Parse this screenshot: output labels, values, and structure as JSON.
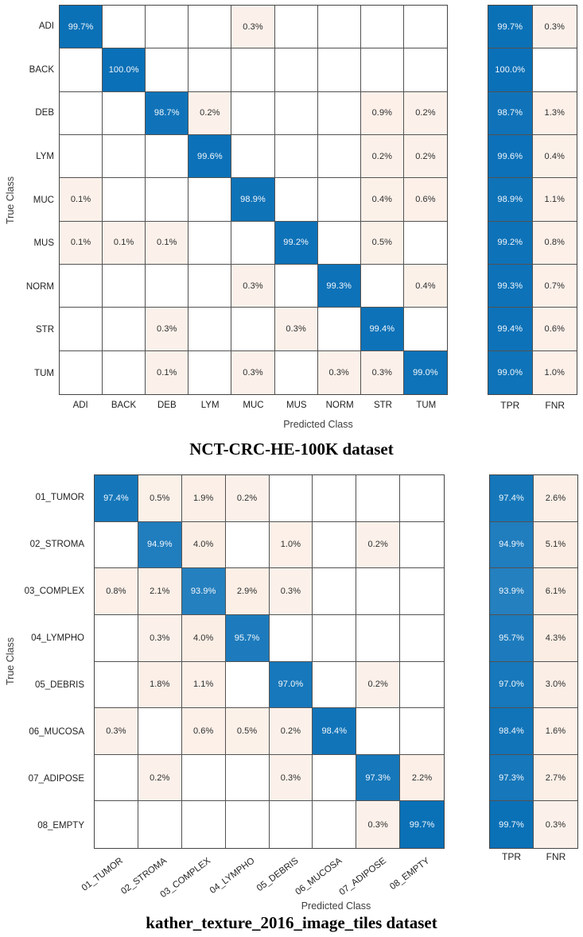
{
  "colors": {
    "diagonal_blue": "#0a70b7",
    "off_diagonal_tint": "#fcf1ea",
    "off_diagonal_deep": "#f5dcc9",
    "grid_line": "#525252",
    "cell_text_light": "#f2f7fb",
    "cell_text_dark": "#2e2e2e"
  },
  "chart_data": [
    {
      "type": "heatmap",
      "name": "confusion-matrix-nct-crc-he-100k",
      "title": "NCT-CRC-HE-100K dataset",
      "xlabel": "Predicted Class",
      "ylabel": "True Class",
      "legend_position": "none",
      "grid": true,
      "classes": [
        "ADI",
        "BACK",
        "DEB",
        "LYM",
        "MUC",
        "MUS",
        "NORM",
        "STR",
        "TUM"
      ],
      "matrix_percent": [
        [
          99.7,
          null,
          null,
          null,
          0.3,
          null,
          null,
          null,
          null
        ],
        [
          null,
          100.0,
          null,
          null,
          null,
          null,
          null,
          null,
          null
        ],
        [
          null,
          null,
          98.7,
          0.2,
          null,
          null,
          null,
          0.9,
          0.2
        ],
        [
          null,
          null,
          null,
          99.6,
          null,
          null,
          null,
          0.2,
          0.2
        ],
        [
          0.1,
          null,
          null,
          null,
          98.9,
          null,
          null,
          0.4,
          0.6
        ],
        [
          0.1,
          0.1,
          0.1,
          null,
          null,
          99.2,
          null,
          0.5,
          null
        ],
        [
          null,
          null,
          null,
          null,
          0.3,
          null,
          99.3,
          null,
          0.4
        ],
        [
          null,
          null,
          0.3,
          null,
          null,
          0.3,
          null,
          99.4,
          null
        ],
        [
          null,
          null,
          0.1,
          null,
          0.3,
          null,
          0.3,
          0.3,
          99.0
        ]
      ],
      "summary_columns": [
        "TPR",
        "FNR"
      ],
      "summary_percent": [
        [
          99.7,
          0.3
        ],
        [
          100.0,
          null
        ],
        [
          98.7,
          1.3
        ],
        [
          99.6,
          0.4
        ],
        [
          98.9,
          1.1
        ],
        [
          99.2,
          0.8
        ],
        [
          99.3,
          0.7
        ],
        [
          99.4,
          0.6
        ],
        [
          99.0,
          1.0
        ]
      ]
    },
    {
      "type": "heatmap",
      "name": "confusion-matrix-kather-texture-2016",
      "title": "kather_texture_2016_image_tiles dataset",
      "xlabel": "Predicted Class",
      "ylabel": "True Class",
      "legend_position": "none",
      "grid": true,
      "classes": [
        "01_TUMOR",
        "02_STROMA",
        "03_COMPLEX",
        "04_LYMPHO",
        "05_DEBRIS",
        "06_MUCOSA",
        "07_ADIPOSE",
        "08_EMPTY"
      ],
      "matrix_percent": [
        [
          97.4,
          0.5,
          1.9,
          0.2,
          null,
          null,
          null,
          null
        ],
        [
          null,
          94.9,
          4.0,
          null,
          1.0,
          null,
          0.2,
          null
        ],
        [
          0.8,
          2.1,
          93.9,
          2.9,
          0.3,
          null,
          null,
          null
        ],
        [
          null,
          0.3,
          4.0,
          95.7,
          null,
          null,
          null,
          null
        ],
        [
          null,
          1.8,
          1.1,
          null,
          97.0,
          null,
          0.2,
          null
        ],
        [
          0.3,
          null,
          0.6,
          0.5,
          0.2,
          98.4,
          null,
          null
        ],
        [
          null,
          0.2,
          null,
          null,
          0.3,
          null,
          97.3,
          2.2
        ],
        [
          null,
          null,
          null,
          null,
          null,
          null,
          0.3,
          99.7
        ]
      ],
      "summary_columns": [
        "TPR",
        "FNR"
      ],
      "summary_percent": [
        [
          97.4,
          2.6
        ],
        [
          94.9,
          5.1
        ],
        [
          93.9,
          6.1
        ],
        [
          95.7,
          4.3
        ],
        [
          97.0,
          3.0
        ],
        [
          98.4,
          1.6
        ],
        [
          97.3,
          2.7
        ],
        [
          99.7,
          0.3
        ]
      ]
    }
  ]
}
